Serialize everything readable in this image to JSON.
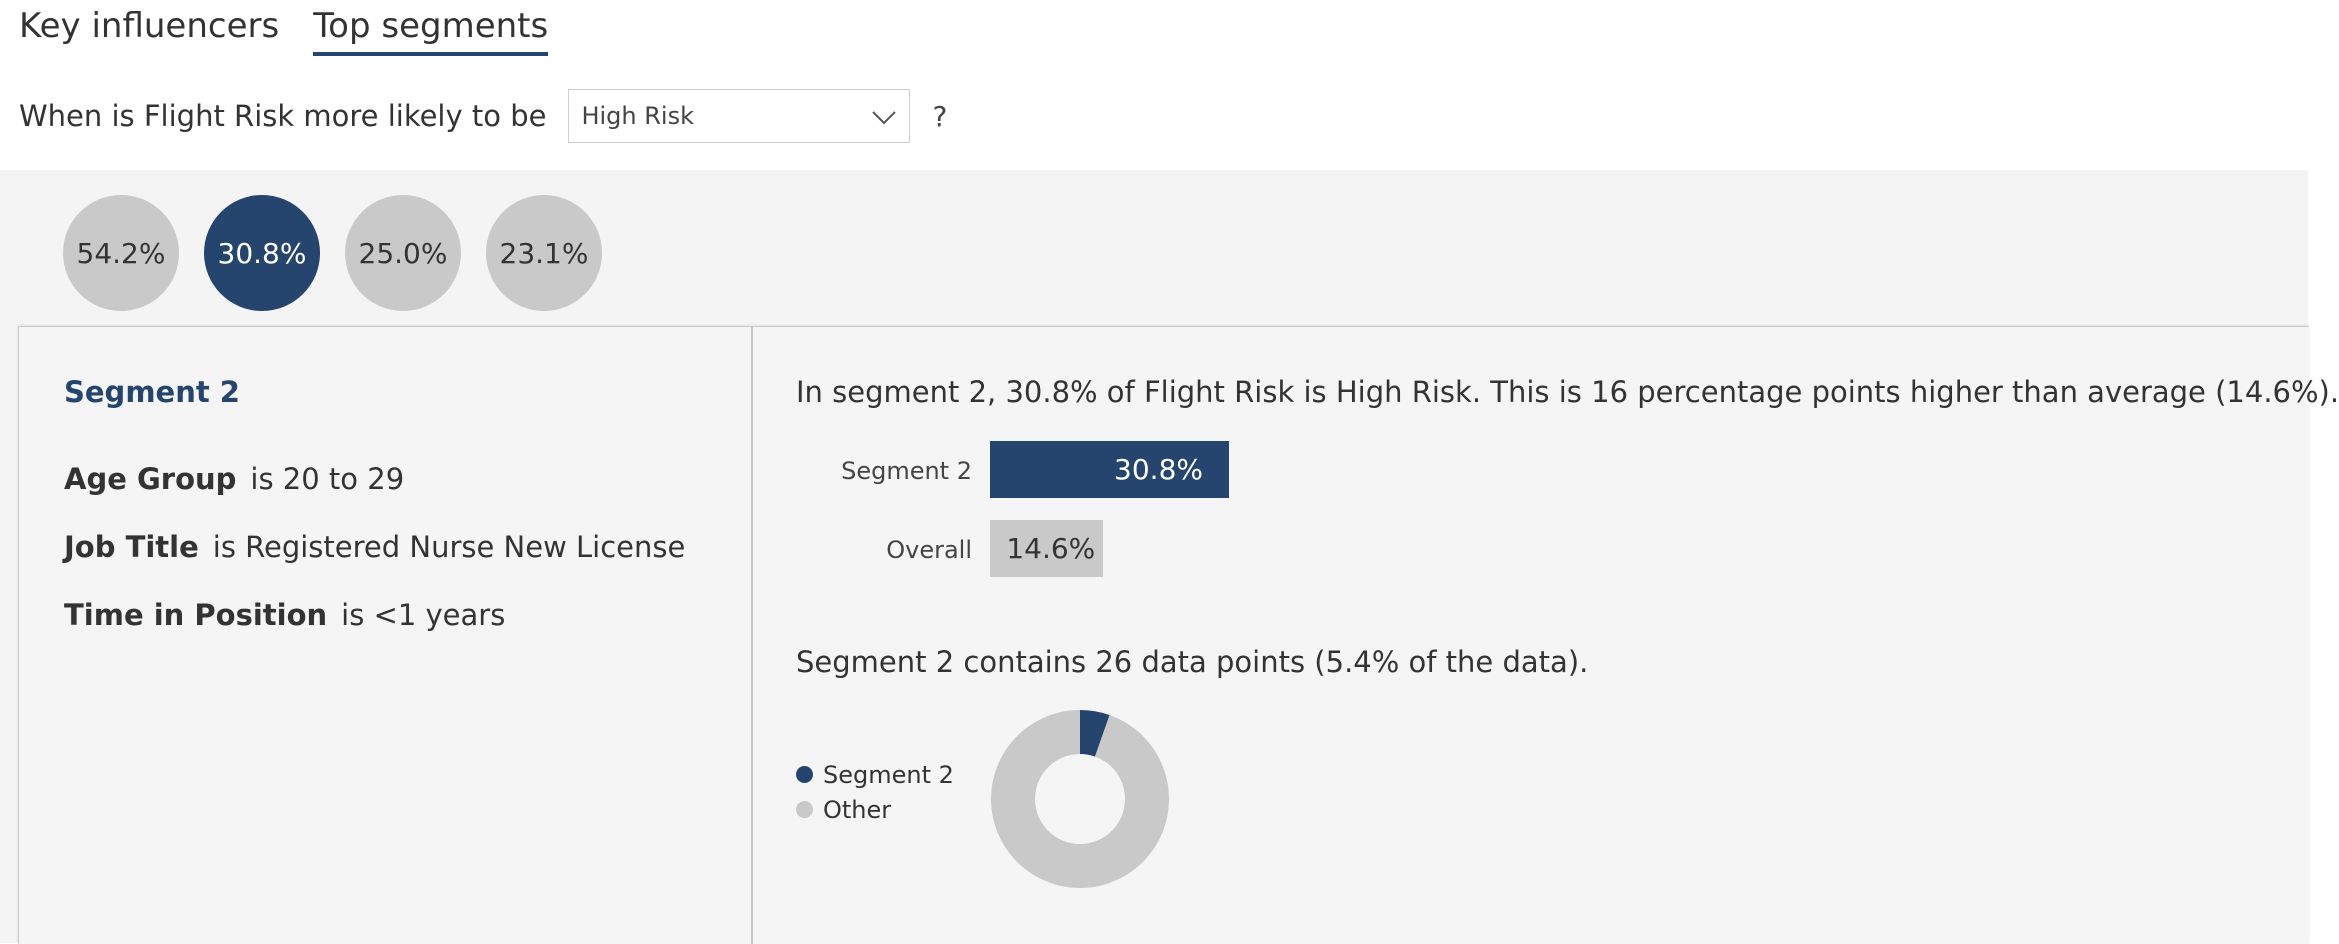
{
  "tabs": [
    {
      "label": "Key influencers",
      "active": false
    },
    {
      "label": "Top segments",
      "active": true
    }
  ],
  "question": {
    "prefix": "When is Flight Risk more likely to be",
    "selected": "High Risk",
    "suffix": "?"
  },
  "segments": [
    {
      "value": "54.2%",
      "selected": false
    },
    {
      "value": "30.8%",
      "selected": true
    },
    {
      "value": "25.0%",
      "selected": false
    },
    {
      "value": "23.1%",
      "selected": false
    }
  ],
  "detail": {
    "title": "Segment 2",
    "conditions": [
      {
        "field": "Age Group",
        "text": "is 20 to 29"
      },
      {
        "field": "Job Title",
        "text": "is Registered Nurse New License"
      },
      {
        "field": "Time in Position",
        "text": "is <1 years"
      }
    ],
    "summary": "In segment 2, 30.8% of Flight Risk is High Risk. This is 16 percentage points higher than average (14.6%).",
    "contains": "Segment 2 contains 26 data points (5.4% of the data)."
  },
  "chart_data": [
    {
      "type": "bar",
      "categories": [
        "Segment 2",
        "Overall"
      ],
      "values": [
        30.8,
        14.6
      ],
      "value_labels": [
        "30.8%",
        "14.6%"
      ],
      "colors": [
        "#26456e",
        "#c9c9c9"
      ]
    },
    {
      "type": "pie",
      "labels": [
        "Segment 2",
        "Other"
      ],
      "values": [
        5.4,
        94.6
      ],
      "colors": [
        "#26456e",
        "#c9c9c9"
      ]
    }
  ],
  "colors": {
    "accent": "#26456e",
    "neutral": "#c9c9c9",
    "panel": "#f4f4f4"
  }
}
